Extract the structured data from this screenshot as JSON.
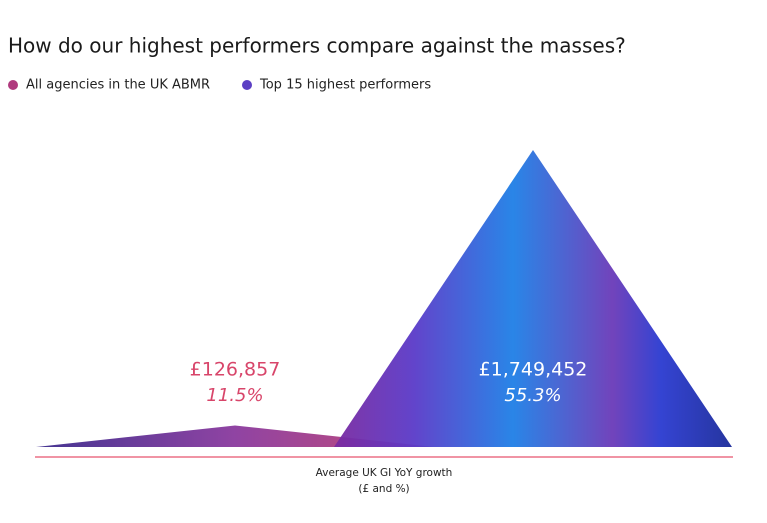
{
  "chart_data": {
    "type": "triangle",
    "title": "How do our highest performers compare against the masses?",
    "xlabel": [
      "Average UK GI YoY growth",
      "(£ and %)"
    ],
    "series": [
      {
        "name": "All agencies in the UK ABMR",
        "color": "#b03a7e",
        "label_color": "#d8456a",
        "values": [
          126857,
          11.5
        ],
        "value_labels": [
          "£126,857",
          "11.5%"
        ]
      },
      {
        "name": "Top 15 highest performers",
        "color": "#5b3fc4",
        "label_color": "#ffffff",
        "values": [
          1749452,
          55.3
        ],
        "value_labels": [
          "£1,749,452",
          "55.3%"
        ]
      }
    ]
  }
}
